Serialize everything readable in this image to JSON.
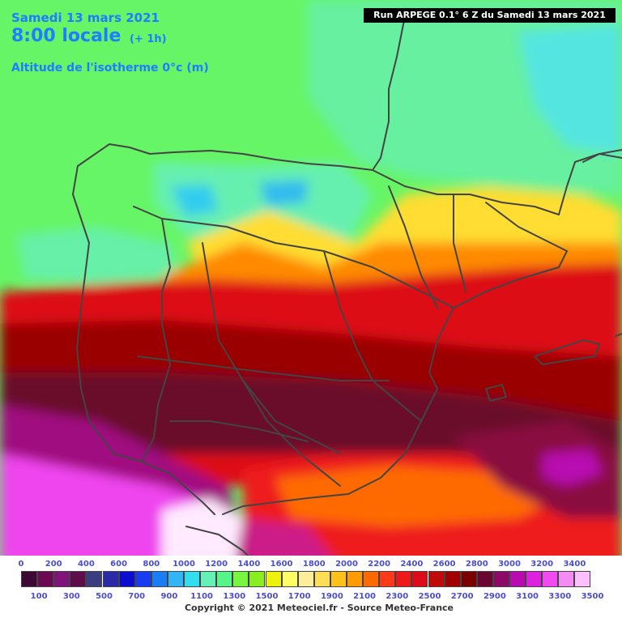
{
  "header": {
    "date": "Samedi 13 mars 2021",
    "time": "8:00 locale",
    "offset": "(+ 1h)",
    "parameter": "Altitude de l'isotherme 0°c (m)",
    "run": "Run ARPEGE 0.1° 6 Z du Samedi 13 mars 2021"
  },
  "legend": {
    "top_labels": [
      "0",
      "200",
      "400",
      "600",
      "800",
      "1000",
      "1200",
      "1400",
      "1600",
      "1800",
      "2000",
      "2200",
      "2400",
      "2600",
      "2800",
      "3000",
      "3200",
      "3400"
    ],
    "bottom_labels": [
      "100",
      "300",
      "500",
      "700",
      "900",
      "1100",
      "1300",
      "1500",
      "1700",
      "1900",
      "2100",
      "2300",
      "2500",
      "2700",
      "2900",
      "3100",
      "3300",
      "3500"
    ],
    "colors": [
      "#3d0833",
      "#6b0a52",
      "#80147a",
      "#5e0c4a",
      "#3a3d80",
      "#2a2aa8",
      "#0d0dd0",
      "#1a3cf0",
      "#1a7df5",
      "#33b5f5",
      "#33ddee",
      "#66f0b8",
      "#55f588",
      "#77f540",
      "#88ee22",
      "#eef20a",
      "#ffff66",
      "#ffee99",
      "#ffdd55",
      "#ffc21a",
      "#ff9a00",
      "#ff6a00",
      "#ff3a1a",
      "#ee1a1a",
      "#dd0a1a",
      "#c00a0a",
      "#a00000",
      "#7a0000",
      "#6b0633",
      "#8a0a66",
      "#b80ab0",
      "#dd22dd",
      "#f04af0",
      "#f58af5",
      "#ffc0ff"
    ],
    "copyright": "Copyright © 2021 Meteociel.fr - Source Meteo-France"
  }
}
